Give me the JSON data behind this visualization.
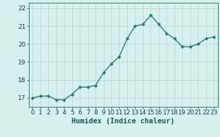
{
  "x": [
    0,
    1,
    2,
    3,
    4,
    5,
    6,
    7,
    8,
    9,
    10,
    11,
    12,
    13,
    14,
    15,
    16,
    17,
    18,
    19,
    20,
    21,
    22,
    23
  ],
  "y": [
    17.0,
    17.1,
    17.1,
    16.9,
    16.9,
    17.2,
    17.6,
    17.6,
    17.7,
    18.4,
    18.9,
    19.3,
    20.3,
    21.0,
    21.1,
    21.6,
    21.1,
    20.6,
    20.3,
    19.85,
    19.85,
    20.0,
    20.3,
    20.4
  ],
  "line_color": "#2d7a6a",
  "marker": "D",
  "marker_size": 1.8,
  "line_width": 1.0,
  "bg_color": "#d6f0ee",
  "grid_color": "#b8d8d4",
  "xlabel": "Humidex (Indice chaleur)",
  "xlabel_fontsize": 7.5,
  "tick_fontsize": 6.5,
  "ylim": [
    16.5,
    22.3
  ],
  "yticks": [
    17,
    18,
    19,
    20,
    21,
    22
  ],
  "xlim": [
    -0.5,
    23.5
  ],
  "xticks": [
    0,
    1,
    2,
    3,
    4,
    5,
    6,
    7,
    8,
    9,
    10,
    11,
    12,
    13,
    14,
    15,
    16,
    17,
    18,
    19,
    20,
    21,
    22,
    23
  ]
}
